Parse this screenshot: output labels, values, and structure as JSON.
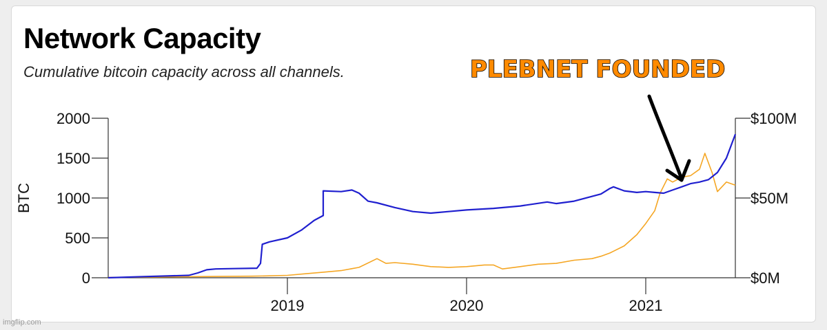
{
  "header": {
    "title": "Network Capacity",
    "subtitle": "Cumulative bitcoin capacity across all channels."
  },
  "annotation": {
    "text": "PLEBNET FOUNDED"
  },
  "watermark": "imgflip.com",
  "colors": {
    "btc_series": "#1f1fcf",
    "usd_series": "#f5a623",
    "axis": "#333333",
    "annotation_fill": "#ff8a00",
    "arrow": "#000000"
  },
  "chart_data": {
    "type": "line",
    "title": "Network Capacity",
    "subtitle": "Cumulative bitcoin capacity across all channels.",
    "ylabel": "BTC",
    "y_left": {
      "lim": [
        0,
        2000
      ],
      "ticks": [
        0,
        500,
        1000,
        1500,
        2000
      ],
      "tick_labels": [
        "0",
        "500",
        "1000",
        "1500",
        "2000"
      ]
    },
    "y_right": {
      "lim": [
        0,
        100
      ],
      "unit": "USD millions",
      "ticks": [
        0,
        50,
        100
      ],
      "tick_labels": [
        "$0M",
        "$50M",
        "$100M"
      ]
    },
    "x": {
      "lim": [
        2018.0,
        2021.5
      ],
      "ticks": [
        2019,
        2020,
        2021
      ],
      "tick_labels": [
        "2019",
        "2020",
        "2021"
      ]
    },
    "grid": false,
    "series": [
      {
        "axis": "left",
        "color": "#1f1fcf",
        "points": [
          [
            2018.0,
            0
          ],
          [
            2018.2,
            15
          ],
          [
            2018.45,
            30
          ],
          [
            2018.5,
            60
          ],
          [
            2018.55,
            100
          ],
          [
            2018.6,
            110
          ],
          [
            2018.7,
            115
          ],
          [
            2018.83,
            120
          ],
          [
            2018.85,
            180
          ],
          [
            2018.86,
            420
          ],
          [
            2018.9,
            450
          ],
          [
            2019.0,
            500
          ],
          [
            2019.08,
            600
          ],
          [
            2019.15,
            720
          ],
          [
            2019.2,
            780
          ],
          [
            2019.2,
            1090
          ],
          [
            2019.3,
            1080
          ],
          [
            2019.36,
            1100
          ],
          [
            2019.4,
            1060
          ],
          [
            2019.45,
            960
          ],
          [
            2019.5,
            940
          ],
          [
            2019.6,
            880
          ],
          [
            2019.7,
            830
          ],
          [
            2019.8,
            810
          ],
          [
            2019.9,
            830
          ],
          [
            2020.0,
            850
          ],
          [
            2020.15,
            870
          ],
          [
            2020.3,
            900
          ],
          [
            2020.45,
            950
          ],
          [
            2020.5,
            930
          ],
          [
            2020.6,
            960
          ],
          [
            2020.75,
            1050
          ],
          [
            2020.8,
            1120
          ],
          [
            2020.82,
            1140
          ],
          [
            2020.88,
            1090
          ],
          [
            2020.95,
            1070
          ],
          [
            2021.0,
            1080
          ],
          [
            2021.05,
            1070
          ],
          [
            2021.1,
            1060
          ],
          [
            2021.15,
            1100
          ],
          [
            2021.2,
            1140
          ],
          [
            2021.25,
            1180
          ],
          [
            2021.3,
            1200
          ],
          [
            2021.35,
            1230
          ],
          [
            2021.4,
            1320
          ],
          [
            2021.45,
            1500
          ],
          [
            2021.48,
            1680
          ],
          [
            2021.5,
            1800
          ]
        ]
      },
      {
        "axis": "right",
        "color": "#f5a623",
        "points": [
          [
            2018.0,
            0.2
          ],
          [
            2018.3,
            0.5
          ],
          [
            2018.6,
            0.8
          ],
          [
            2018.8,
            1.0
          ],
          [
            2018.9,
            1.2
          ],
          [
            2019.0,
            1.5
          ],
          [
            2019.1,
            2.5
          ],
          [
            2019.2,
            3.5
          ],
          [
            2019.3,
            4.5
          ],
          [
            2019.4,
            6.5
          ],
          [
            2019.5,
            12
          ],
          [
            2019.55,
            9
          ],
          [
            2019.6,
            9.5
          ],
          [
            2019.7,
            8.5
          ],
          [
            2019.8,
            7
          ],
          [
            2019.9,
            6.5
          ],
          [
            2020.0,
            7
          ],
          [
            2020.1,
            8
          ],
          [
            2020.15,
            8
          ],
          [
            2020.2,
            5.5
          ],
          [
            2020.3,
            7
          ],
          [
            2020.4,
            8.5
          ],
          [
            2020.5,
            9
          ],
          [
            2020.6,
            11
          ],
          [
            2020.7,
            12
          ],
          [
            2020.75,
            13.5
          ],
          [
            2020.8,
            15.5
          ],
          [
            2020.88,
            20
          ],
          [
            2020.95,
            27
          ],
          [
            2021.0,
            34
          ],
          [
            2021.05,
            42
          ],
          [
            2021.08,
            53
          ],
          [
            2021.12,
            62
          ],
          [
            2021.15,
            60
          ],
          [
            2021.2,
            63
          ],
          [
            2021.25,
            64
          ],
          [
            2021.3,
            68
          ],
          [
            2021.33,
            78
          ],
          [
            2021.37,
            66
          ],
          [
            2021.4,
            54
          ],
          [
            2021.45,
            60
          ],
          [
            2021.5,
            58
          ]
        ]
      }
    ]
  }
}
